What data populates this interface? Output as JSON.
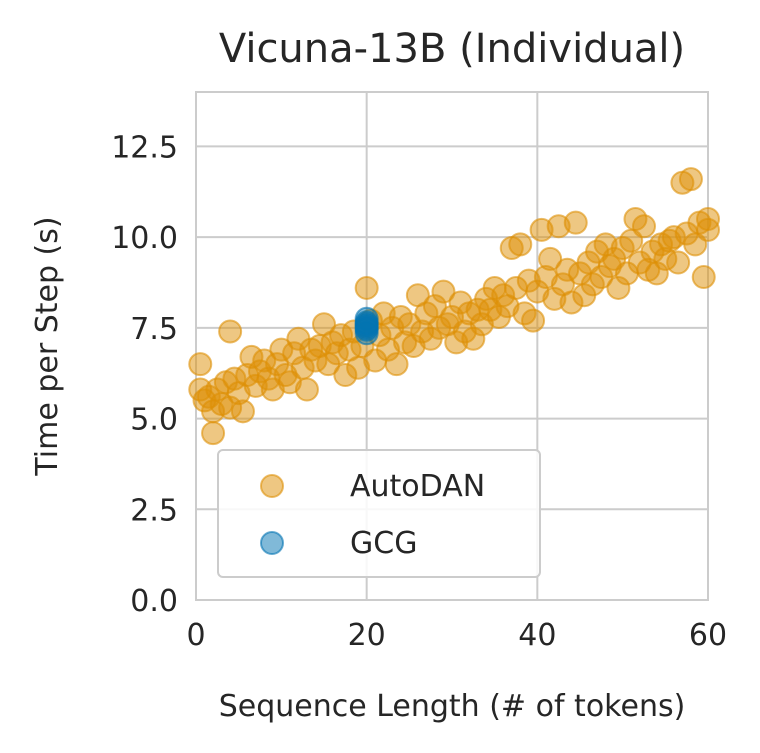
{
  "chart_data": {
    "type": "scatter",
    "title": "Vicuna-13B (Individual)",
    "xlabel": "Sequence Length (# of tokens)",
    "ylabel": "Time per Step (s)",
    "xlim": [
      0,
      60
    ],
    "ylim": [
      0,
      14
    ],
    "xticks": [
      "0",
      "20",
      "40",
      "60"
    ],
    "yticks": [
      "0.0",
      "2.5",
      "5.0",
      "7.5",
      "10.0",
      "12.5"
    ],
    "grid": true,
    "legend_position": "lower-left",
    "series": [
      {
        "name": "AutoDAN",
        "color": "#de8f05",
        "points": [
          [
            0.5,
            6.5
          ],
          [
            0.5,
            5.8
          ],
          [
            1,
            5.5
          ],
          [
            1.5,
            5.6
          ],
          [
            2,
            4.6
          ],
          [
            2,
            5.2
          ],
          [
            2.5,
            5.8
          ],
          [
            3,
            5.4
          ],
          [
            3.5,
            6.0
          ],
          [
            4,
            7.4
          ],
          [
            4,
            5.3
          ],
          [
            4.5,
            6.1
          ],
          [
            5,
            5.7
          ],
          [
            5.5,
            5.2
          ],
          [
            6,
            6.2
          ],
          [
            6.5,
            6.7
          ],
          [
            7,
            5.9
          ],
          [
            7.5,
            6.3
          ],
          [
            8,
            6.6
          ],
          [
            8.5,
            6.1
          ],
          [
            9,
            5.8
          ],
          [
            9.5,
            6.5
          ],
          [
            10,
            6.9
          ],
          [
            10.5,
            6.2
          ],
          [
            11,
            6.0
          ],
          [
            11.5,
            6.8
          ],
          [
            12,
            7.2
          ],
          [
            12.5,
            6.4
          ],
          [
            13,
            5.8
          ],
          [
            13.5,
            6.9
          ],
          [
            14,
            6.6
          ],
          [
            14.5,
            7.0
          ],
          [
            15,
            7.6
          ],
          [
            15.5,
            6.5
          ],
          [
            16,
            7.1
          ],
          [
            16.5,
            6.8
          ],
          [
            17,
            7.3
          ],
          [
            17.5,
            6.2
          ],
          [
            18,
            6.9
          ],
          [
            18.5,
            7.4
          ],
          [
            19,
            6.4
          ],
          [
            19.5,
            7.0
          ],
          [
            20,
            8.6
          ],
          [
            20.5,
            7.7
          ],
          [
            21,
            6.6
          ],
          [
            21.5,
            7.3
          ],
          [
            22,
            7.9
          ],
          [
            22.5,
            6.9
          ],
          [
            23,
            7.5
          ],
          [
            23.5,
            6.5
          ],
          [
            24,
            7.8
          ],
          [
            24.5,
            7.1
          ],
          [
            25,
            7.6
          ],
          [
            25.5,
            7.0
          ],
          [
            26,
            8.4
          ],
          [
            26.5,
            7.4
          ],
          [
            27,
            7.9
          ],
          [
            27.5,
            7.2
          ],
          [
            28,
            8.1
          ],
          [
            28.5,
            7.5
          ],
          [
            29,
            8.5
          ],
          [
            29.5,
            7.6
          ],
          [
            30,
            7.8
          ],
          [
            30.5,
            7.1
          ],
          [
            31,
            8.2
          ],
          [
            31.5,
            7.4
          ],
          [
            32,
            7.9
          ],
          [
            32.5,
            7.2
          ],
          [
            33,
            8.0
          ],
          [
            33.5,
            7.6
          ],
          [
            34,
            8.3
          ],
          [
            34.5,
            8.0
          ],
          [
            35,
            8.6
          ],
          [
            35.5,
            7.8
          ],
          [
            36,
            8.4
          ],
          [
            36.5,
            8.1
          ],
          [
            37,
            9.7
          ],
          [
            37.5,
            8.6
          ],
          [
            38,
            9.8
          ],
          [
            38.5,
            7.9
          ],
          [
            39,
            8.8
          ],
          [
            39.5,
            7.7
          ],
          [
            40,
            8.5
          ],
          [
            40.5,
            10.2
          ],
          [
            41,
            8.9
          ],
          [
            41.5,
            9.4
          ],
          [
            42,
            8.3
          ],
          [
            42.5,
            10.3
          ],
          [
            43,
            8.7
          ],
          [
            43.5,
            9.1
          ],
          [
            44,
            8.2
          ],
          [
            44.5,
            10.4
          ],
          [
            45,
            9.0
          ],
          [
            45.5,
            8.4
          ],
          [
            46,
            9.3
          ],
          [
            46.5,
            8.7
          ],
          [
            47,
            9.6
          ],
          [
            47.5,
            8.9
          ],
          [
            48,
            9.8
          ],
          [
            48.5,
            9.2
          ],
          [
            49,
            9.4
          ],
          [
            49.5,
            8.6
          ],
          [
            50,
            9.7
          ],
          [
            50.5,
            9.0
          ],
          [
            51,
            9.9
          ],
          [
            51.5,
            10.5
          ],
          [
            52,
            9.3
          ],
          [
            52.5,
            10.3
          ],
          [
            53,
            9.1
          ],
          [
            53.5,
            9.6
          ],
          [
            54,
            9.0
          ],
          [
            54.5,
            9.8
          ],
          [
            55,
            9.4
          ],
          [
            55.5,
            9.9
          ],
          [
            56,
            10.0
          ],
          [
            56.5,
            9.3
          ],
          [
            57,
            11.5
          ],
          [
            57.5,
            10.1
          ],
          [
            58,
            11.6
          ],
          [
            58.5,
            9.8
          ],
          [
            59,
            10.4
          ],
          [
            59.5,
            8.9
          ],
          [
            60,
            10.2
          ],
          [
            60,
            10.5
          ]
        ]
      },
      {
        "name": "GCG",
        "color": "#0173b2",
        "points": [
          [
            20,
            7.35
          ],
          [
            20,
            7.45
          ],
          [
            20,
            7.55
          ],
          [
            20,
            7.65
          ],
          [
            20,
            7.75
          ],
          [
            20,
            7.5
          ],
          [
            20,
            7.6
          ]
        ]
      }
    ]
  }
}
